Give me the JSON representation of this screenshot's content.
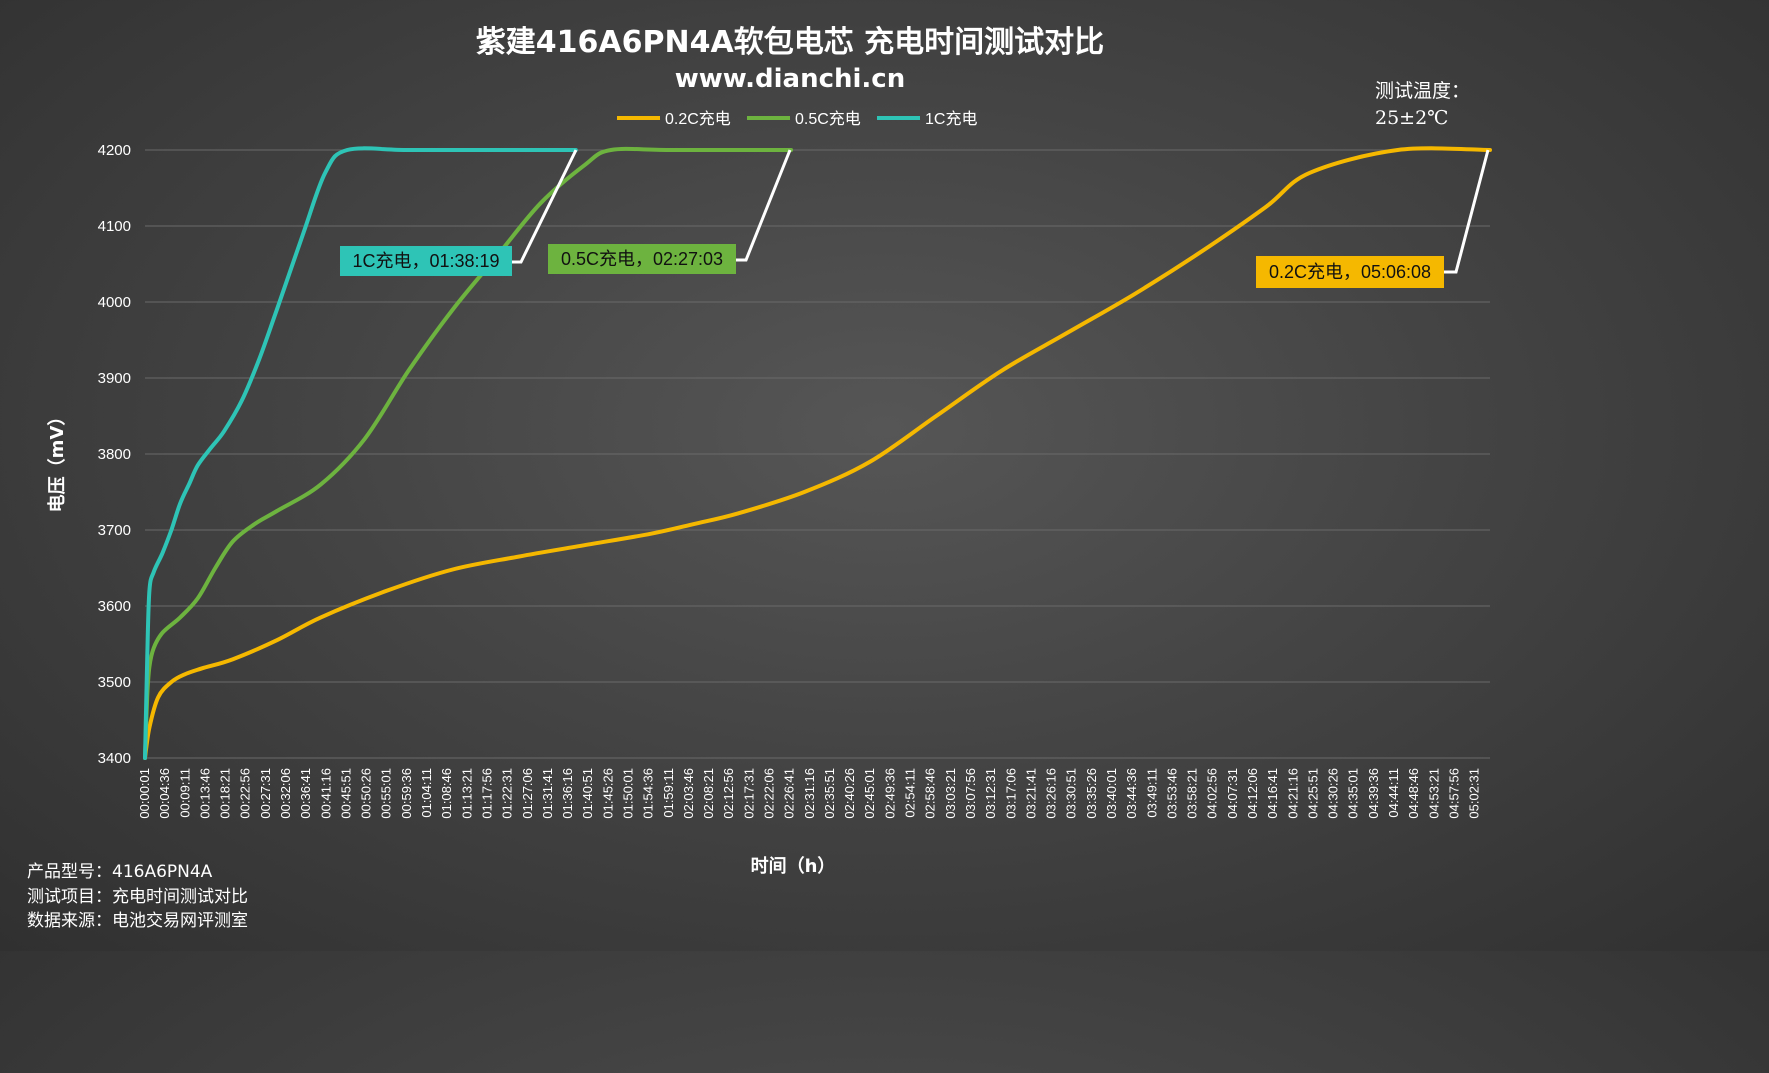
{
  "chart_data": {
    "type": "line",
    "title": "紫建416A6PN4A软包电芯 充电时间测试对比",
    "subtitle": "www.dianchi.cn",
    "xlabel": "时间（h）",
    "ylabel": "电压（mV）",
    "ylim": [
      3400,
      4200
    ],
    "yticks": [
      3400,
      3500,
      3600,
      3700,
      3800,
      3900,
      4000,
      4100,
      4200
    ],
    "grid": "horizontal",
    "legend_position": "top-center",
    "x_tick_labels": [
      "00:00:01",
      "00:04:36",
      "00:09:11",
      "00:13:46",
      "00:18:21",
      "00:22:56",
      "00:27:31",
      "00:32:06",
      "00:36:41",
      "00:41:16",
      "00:45:51",
      "00:50:26",
      "00:55:01",
      "00:59:36",
      "01:04:11",
      "01:08:46",
      "01:13:21",
      "01:17:56",
      "01:22:31",
      "01:27:06",
      "01:31:41",
      "01:36:16",
      "01:40:51",
      "01:45:26",
      "01:50:01",
      "01:54:36",
      "01:59:11",
      "02:03:46",
      "02:08:21",
      "02:12:56",
      "02:17:31",
      "02:22:06",
      "02:26:41",
      "02:31:16",
      "02:35:51",
      "02:40:26",
      "02:45:01",
      "02:49:36",
      "02:54:11",
      "02:58:46",
      "03:03:21",
      "03:07:56",
      "03:12:31",
      "03:17:06",
      "03:21:41",
      "03:26:16",
      "03:30:51",
      "03:35:26",
      "03:40:01",
      "03:44:36",
      "03:49:11",
      "03:53:46",
      "03:58:21",
      "04:02:56",
      "04:07:31",
      "04:12:06",
      "04:16:41",
      "04:21:16",
      "04:25:51",
      "04:30:26",
      "04:35:01",
      "04:39:36",
      "04:44:11",
      "04:48:46",
      "04:53:21",
      "04:57:56",
      "05:02:31"
    ],
    "x_unit": "minutes",
    "series": [
      {
        "name": "0.2C充电",
        "color": "#F5B800",
        "x": [
          0,
          1,
          3,
          6,
          9,
          13,
          20,
          30,
          40,
          55,
          70,
          85,
          100,
          115,
          125,
          135,
          150,
          165,
          180,
          195,
          210,
          225,
          240,
          255,
          265,
          285,
          306
        ],
        "y": [
          3400,
          3440,
          3480,
          3500,
          3510,
          3518,
          3530,
          3555,
          3585,
          3620,
          3648,
          3665,
          3680,
          3695,
          3708,
          3722,
          3750,
          3790,
          3850,
          3910,
          3960,
          4010,
          4065,
          4125,
          4170,
          4200,
          4200
        ]
      },
      {
        "name": "0.5C充电",
        "color": "#6DB33F",
        "x": [
          0,
          0.5,
          1,
          2,
          4,
          8,
          12,
          16,
          20,
          25,
          30,
          40,
          50,
          60,
          70,
          80,
          90,
          100,
          106,
          120,
          147
        ],
        "y": [
          3400,
          3480,
          3520,
          3545,
          3565,
          3585,
          3610,
          3650,
          3685,
          3708,
          3725,
          3760,
          3820,
          3910,
          3990,
          4060,
          4130,
          4180,
          4200,
          4200,
          4200
        ]
      },
      {
        "name": "1C充电",
        "color": "#2EC4B6",
        "x": [
          0,
          0.5,
          1,
          2,
          4,
          6,
          8,
          10,
          12,
          15,
          18,
          22,
          26,
          30,
          36,
          41,
          46,
          60,
          80,
          98
        ],
        "y": [
          3400,
          3530,
          3620,
          3645,
          3670,
          3700,
          3735,
          3760,
          3785,
          3808,
          3830,
          3870,
          3925,
          3990,
          4090,
          4170,
          4200,
          4200,
          4200,
          4200
        ]
      }
    ],
    "annotations": [
      {
        "series": "1C充电",
        "text": "1C充电，01:38:19",
        "bg": "#2EC4B6"
      },
      {
        "series": "0.5C充电",
        "text": "0.5C充电，02:27:03",
        "bg": "#6DB33F"
      },
      {
        "series": "0.2C充电",
        "text": "0.2C充电，05:06:08",
        "bg": "#F5B800"
      }
    ]
  },
  "info": {
    "model_label": "产品型号：",
    "model_value": "416A6PN4A",
    "item_label": "测试项目：",
    "item_value": "充电时间测试对比",
    "source_label": "数据来源：",
    "source_value": "电池交易网评测室"
  },
  "temperature": {
    "label": "测试温度：",
    "value": "25±2℃"
  }
}
